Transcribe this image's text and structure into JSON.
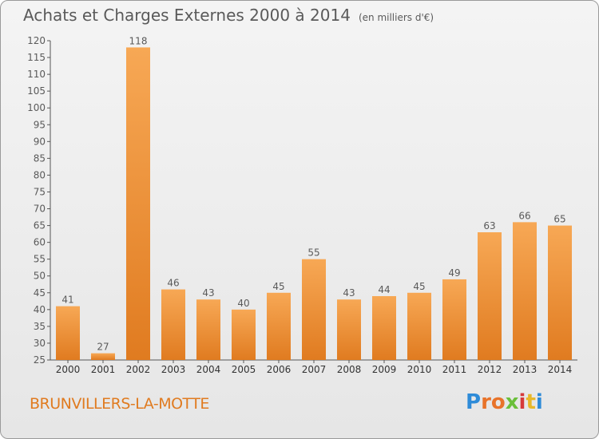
{
  "header": {
    "title": "Achats et Charges Externes 2000 à 2014",
    "unit": "(en milliers d'€)"
  },
  "footer": {
    "commune": "BRUNVILLERS-LA-MOTTE",
    "logo": [
      "P",
      "r",
      "o",
      "x",
      "i",
      "t",
      "i"
    ]
  },
  "colors": {
    "bar_light": "#f7a855",
    "bar_dark": "#e07b20",
    "text": "#5a5a5a",
    "logo": [
      "#2e8bd8",
      "#e8732a",
      "#e8732a",
      "#6abf3a",
      "#d63a3a",
      "#e8b82a",
      "#2e8bd8"
    ]
  },
  "chart_data": {
    "type": "bar",
    "categories": [
      "2000",
      "2001",
      "2002",
      "2003",
      "2004",
      "2005",
      "2006",
      "2007",
      "2008",
      "2009",
      "2010",
      "2011",
      "2012",
      "2013",
      "2014"
    ],
    "values": [
      41,
      27,
      118,
      46,
      43,
      40,
      45,
      55,
      43,
      44,
      45,
      49,
      63,
      66,
      65
    ],
    "ylim": [
      25,
      120
    ],
    "yticks": [
      25,
      30,
      35,
      40,
      45,
      50,
      55,
      60,
      65,
      70,
      75,
      80,
      85,
      90,
      95,
      100,
      105,
      110,
      115,
      120
    ],
    "grid": false
  }
}
